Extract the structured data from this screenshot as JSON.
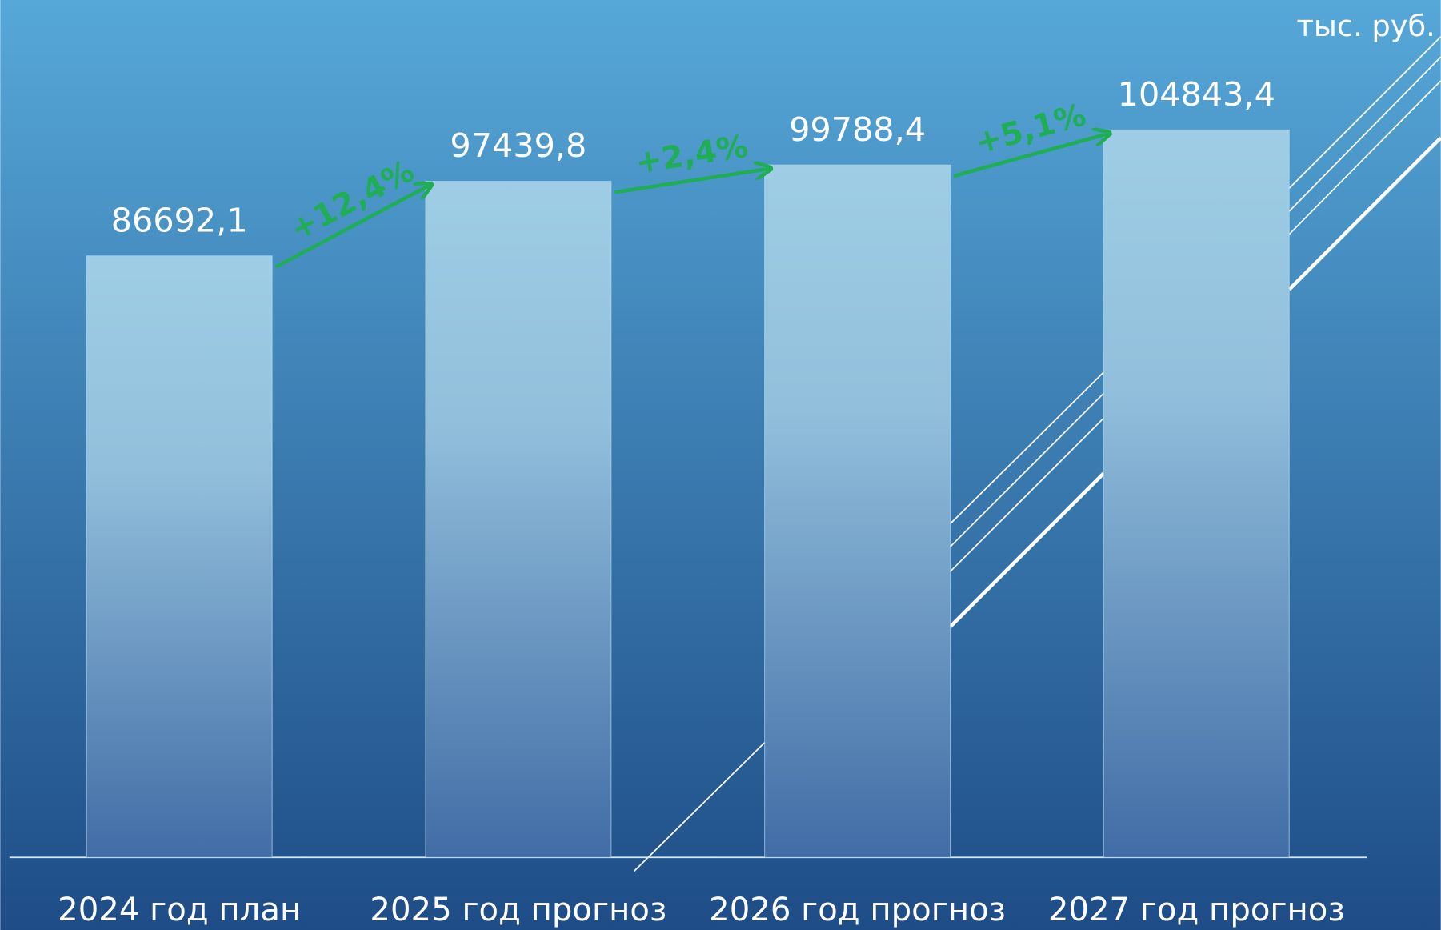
{
  "chart_data": {
    "type": "bar",
    "unit": "тыс. руб.",
    "categories": [
      "2024 год план",
      "2025 год прогноз",
      "2026 год прогноз",
      "2027 год прогноз"
    ],
    "values": [
      86692.1,
      97439.8,
      99788.4,
      104843.4
    ],
    "value_labels": [
      "86692,1",
      "97439,8",
      "99788,4",
      "104843,4"
    ],
    "growth_labels": [
      "+12,4%",
      "+2,4%",
      "+5,1%"
    ],
    "ylim": [
      0,
      120000
    ],
    "color": "#9ccbe3",
    "annotation_color": "#1fae55"
  }
}
